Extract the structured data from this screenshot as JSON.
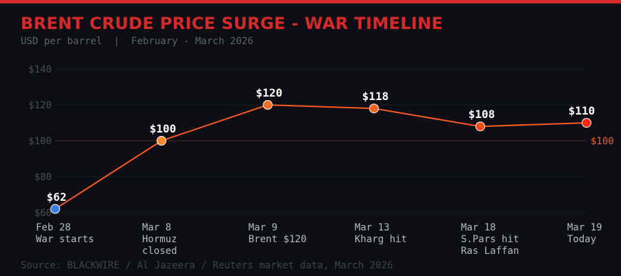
{
  "title": "BRENT CRUDE PRICE SURGE - WAR TIMELINE",
  "subtitle": "USD per barrel  |  February - March 2026",
  "source": "Source: BLACKWIRE / Al Jazeera / Reuters market data, March 2026",
  "colors": {
    "accent": "#d62a2a",
    "line": "#ff5a1f",
    "reference": "#e8642c",
    "grid": "#1c1e28",
    "tick": "#4a4c57"
  },
  "chart_data": {
    "type": "line",
    "ylim": [
      60,
      140
    ],
    "yticks": [
      60,
      80,
      100,
      120,
      140
    ],
    "ytick_labels": [
      "$60",
      "$80",
      "$100",
      "$120",
      "$140"
    ],
    "grid": true,
    "categories": [
      {
        "date": "Feb 28",
        "event": [
          "War starts"
        ]
      },
      {
        "date": "Mar 8",
        "event": [
          "Hormuz",
          "closed"
        ]
      },
      {
        "date": "Mar 9",
        "event": [
          "Brent $120"
        ]
      },
      {
        "date": "Mar 13",
        "event": [
          "Kharg hit"
        ]
      },
      {
        "date": "Mar 18",
        "event": [
          "S.Pars hit",
          "Ras Laffan"
        ]
      },
      {
        "date": "Mar 19",
        "event": [
          "Today"
        ]
      }
    ],
    "values": [
      62,
      100,
      120,
      118,
      108,
      110
    ],
    "data_labels": [
      "$62",
      "$100",
      "$120",
      "$118",
      "$108",
      "$110"
    ],
    "point_colors": [
      "#3b7ded",
      "#ff8a2e",
      "#ff6d24",
      "#ff6220",
      "#ff4a12",
      "#ff2a0a"
    ],
    "reference_line": {
      "value": 100,
      "label": "$100"
    }
  }
}
